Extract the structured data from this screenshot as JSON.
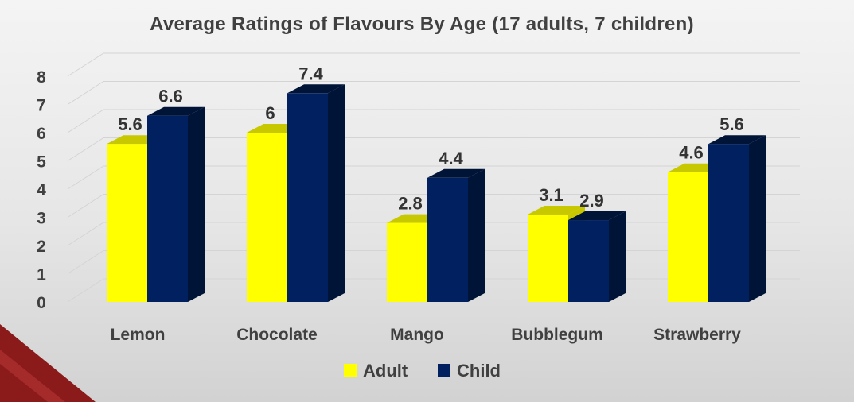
{
  "chart_data": {
    "type": "bar",
    "title": "Average Ratings of Flavours By Age (17 adults, 7 children)",
    "categories": [
      "Lemon",
      "Chocolate",
      "Mango",
      "Bubblegum",
      "Strawberry"
    ],
    "series": [
      {
        "name": "Adult",
        "values": [
          5.6,
          6,
          2.8,
          3.1,
          4.6
        ],
        "labels": [
          "5.6",
          "6",
          "2.8",
          "3.1",
          "4.6"
        ],
        "color": "#ffff00",
        "dark": "#c8c800"
      },
      {
        "name": "Child",
        "values": [
          6.6,
          7.4,
          4.4,
          2.9,
          5.6
        ],
        "labels": [
          "6.6",
          "7.4",
          "4.4",
          "2.9",
          "5.6"
        ],
        "color": "#002060",
        "dark": "#001438"
      }
    ],
    "yticks": [
      "0",
      "1",
      "2",
      "3",
      "4",
      "5",
      "6",
      "7",
      "8"
    ],
    "ylim": [
      0,
      8
    ],
    "grid": true,
    "legend_position": "bottom",
    "style": "3d-clustered-column"
  },
  "decoration": {
    "corner_color": "#8b1a1a"
  }
}
